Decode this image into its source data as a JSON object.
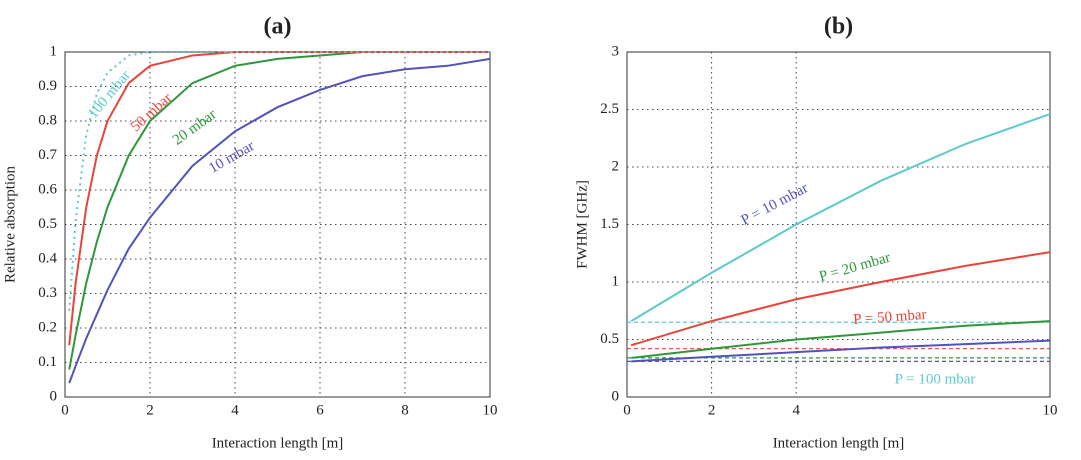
{
  "chart_data": [
    {
      "type": "line",
      "title": "(a)",
      "xlabel": "Interaction length [m]",
      "ylabel": "Relative absorption",
      "x": [
        0.1,
        0.25,
        0.5,
        0.75,
        1,
        1.5,
        2,
        3,
        4,
        5,
        6,
        7,
        8,
        9,
        10
      ],
      "xlim": [
        0,
        10
      ],
      "ylim": [
        0,
        1
      ],
      "xticks": [
        0,
        2,
        4,
        6,
        8,
        10
      ],
      "yticks": [
        0,
        0.1,
        0.2,
        0.3,
        0.4,
        0.5,
        0.6,
        0.7,
        0.8,
        0.9,
        1
      ],
      "grid": true,
      "series": [
        {
          "name": "10 mbar",
          "color": "#5252bd",
          "values": [
            0.04,
            0.09,
            0.17,
            0.24,
            0.31,
            0.43,
            0.52,
            0.67,
            0.77,
            0.84,
            0.89,
            0.93,
            0.95,
            0.96,
            0.98
          ]
        },
        {
          "name": "20 mbar",
          "color": "#2e973a",
          "values": [
            0.08,
            0.18,
            0.33,
            0.45,
            0.55,
            0.7,
            0.8,
            0.91,
            0.96,
            0.98,
            0.99,
            1,
            1,
            1,
            1
          ]
        },
        {
          "name": "50 mbar",
          "color": "#e8453a",
          "values": [
            0.15,
            0.33,
            0.55,
            0.7,
            0.8,
            0.91,
            0.96,
            0.99,
            1,
            1,
            1,
            1,
            1,
            1,
            1
          ]
        },
        {
          "name": "100 mbar",
          "color": "#5ccaca",
          "dashed": true,
          "values": [
            0.25,
            0.51,
            0.76,
            0.88,
            0.94,
            0.99,
            1,
            1,
            1,
            1,
            1,
            1,
            1,
            1,
            1
          ]
        }
      ]
    },
    {
      "type": "line",
      "title": "(b)",
      "xlabel": "Interaction length [m]",
      "ylabel": "FWHM [GHz]",
      "x": [
        0.1,
        2,
        4,
        6,
        8,
        10
      ],
      "xlim": [
        0,
        10
      ],
      "ylim": [
        0,
        3
      ],
      "xticks": [
        0,
        2,
        4,
        10
      ],
      "yticks": [
        0,
        0.5,
        1,
        1.5,
        2,
        2.5,
        3
      ],
      "grid": true,
      "series": [
        {
          "name": "P = 100 mbar",
          "color": "#5ccaca",
          "values": [
            0.66,
            1.08,
            1.5,
            1.88,
            2.2,
            2.46
          ],
          "dashed_level": 0.65
        },
        {
          "name": "P = 50 mbar",
          "color": "#e8453a",
          "values": [
            0.45,
            0.66,
            0.85,
            1.0,
            1.14,
            1.26
          ],
          "dashed_level": 0.42
        },
        {
          "name": "P = 20 mbar",
          "color": "#2e973a",
          "values": [
            0.34,
            0.42,
            0.5,
            0.56,
            0.62,
            0.66
          ],
          "dashed_level": 0.34
        },
        {
          "name": "P = 10 mbar",
          "color": "#5252bd",
          "values": [
            0.31,
            0.35,
            0.39,
            0.43,
            0.46,
            0.49
          ],
          "dashed_level": 0.31
        }
      ]
    }
  ]
}
